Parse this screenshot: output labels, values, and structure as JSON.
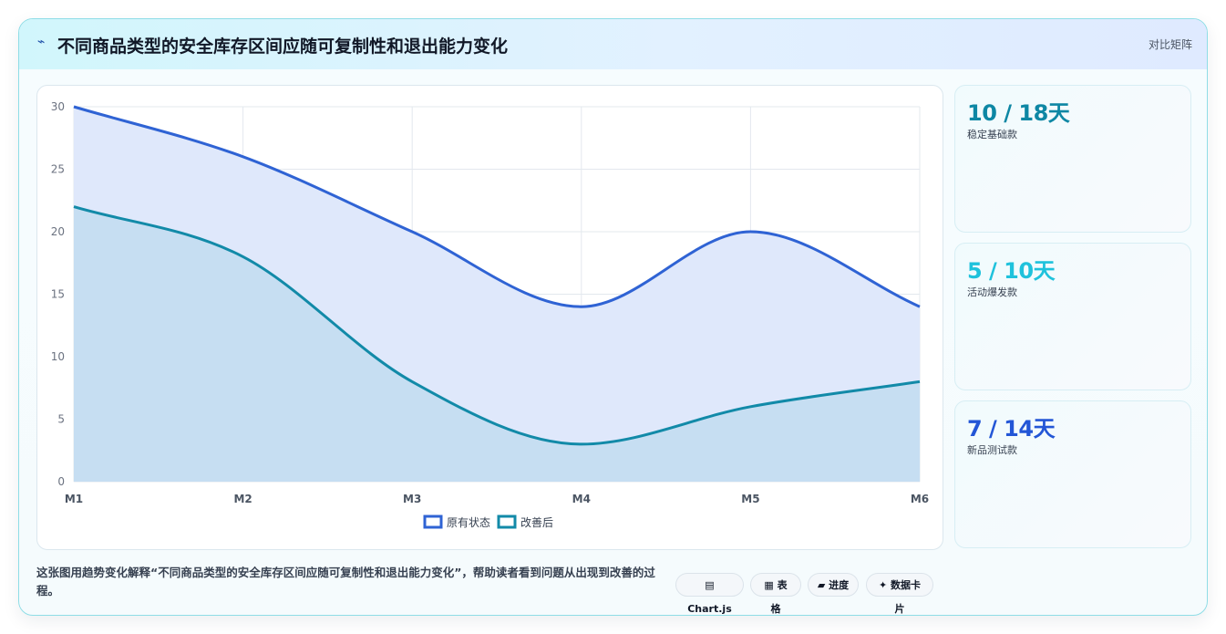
{
  "header": {
    "icon": "chart-trend-icon",
    "title": "不同商品类型的安全库存区间应随可复制性和退出能力变化",
    "link": "对比矩阵"
  },
  "chart_data": {
    "type": "area",
    "x": [
      "M1",
      "M2",
      "M3",
      "M4",
      "M5",
      "M6"
    ],
    "series": [
      {
        "name": "原有状态",
        "values": [
          30,
          26,
          20,
          14,
          20,
          14
        ],
        "color": "#2f63d4",
        "fill": "#dfe8fb"
      },
      {
        "name": "改善后",
        "values": [
          22,
          18,
          8,
          3,
          6,
          8
        ],
        "color": "#128aa8",
        "fill": "#c4ddf1"
      }
    ],
    "ylim": [
      0,
      30
    ],
    "yticks": [
      0,
      5,
      10,
      15,
      20,
      25,
      30
    ],
    "grid": true,
    "legend": "bottom",
    "xlabel": "",
    "ylabel": ""
  },
  "stats": [
    {
      "value": "10 / 18天",
      "label": "稳定基础款",
      "color": "#0e87a4"
    },
    {
      "value": "5 / 10天",
      "label": "活动爆发款",
      "color": "#1fc2dc"
    },
    {
      "value": "7 / 14天",
      "label": "新品测试款",
      "color": "#2356d6"
    }
  ],
  "footer": {
    "description": "这张图用趋势变化解释“不同商品类型的安全库存区间应随可复制性和退出能力变化”，帮助读者看到问题从出现到改善的过程。",
    "chips": [
      {
        "icon": "table-icon",
        "label": "▤ Chart.js"
      },
      {
        "icon": "grid-icon",
        "label": "▦ 表格"
      },
      {
        "icon": "progress-icon",
        "label": "▰ 进度"
      },
      {
        "icon": "sparkle-icon",
        "label": "✦ 数据卡片"
      }
    ]
  }
}
